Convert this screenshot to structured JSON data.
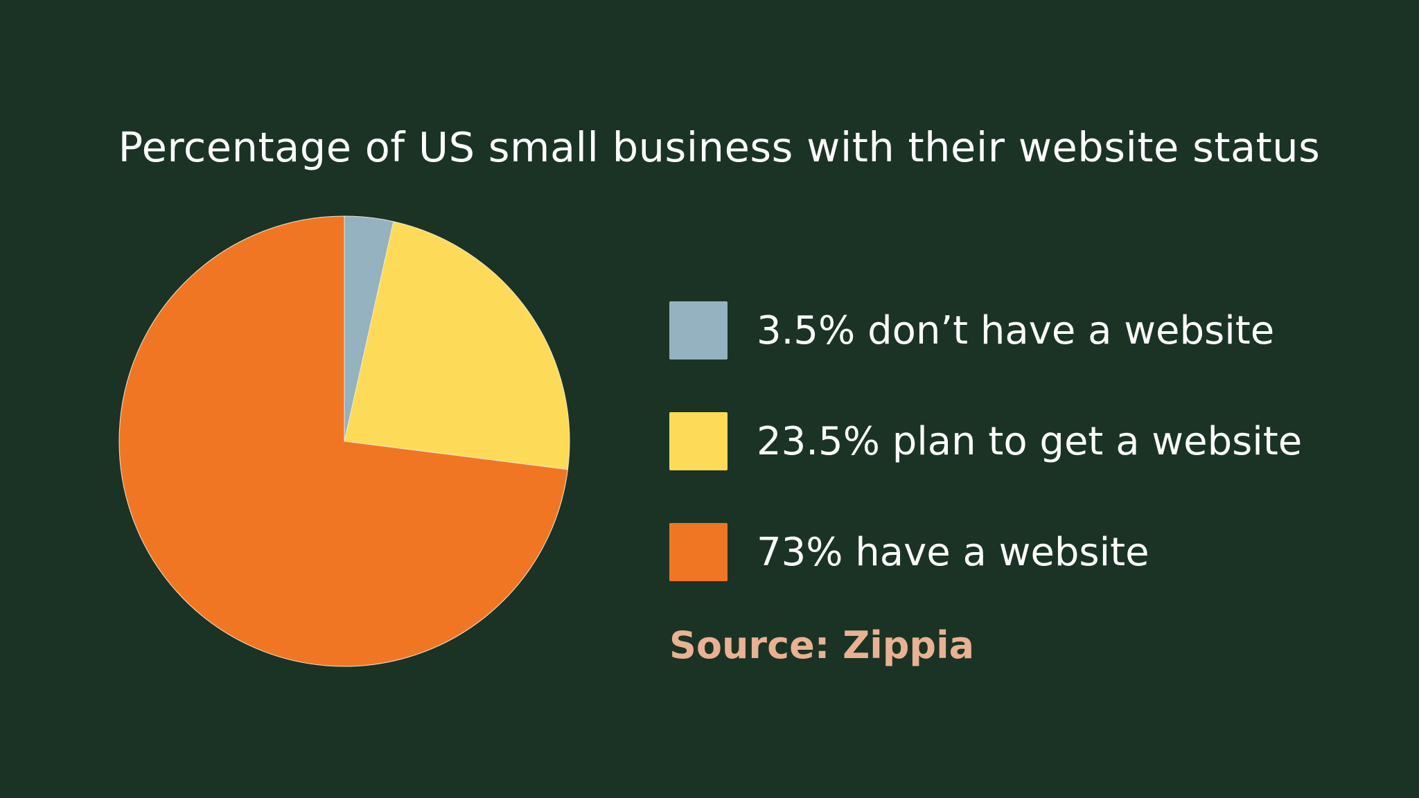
{
  "chart_data": {
    "type": "pie",
    "title": "Percentage of US small business with their website status",
    "slices": [
      {
        "label": "3.5% don’t have a website",
        "value": 3.5,
        "color": "#94b2c0"
      },
      {
        "label": "23.5% plan to get a website",
        "value": 23.5,
        "color": "#fddb59"
      },
      {
        "label": "73% have a website",
        "value": 73,
        "color": "#f07624"
      }
    ],
    "legend_placement": "right"
  },
  "source": "Source: Zippia",
  "colors": {
    "background": "#1b3325",
    "text": "#ffffff",
    "source_text": "#e8b293"
  }
}
